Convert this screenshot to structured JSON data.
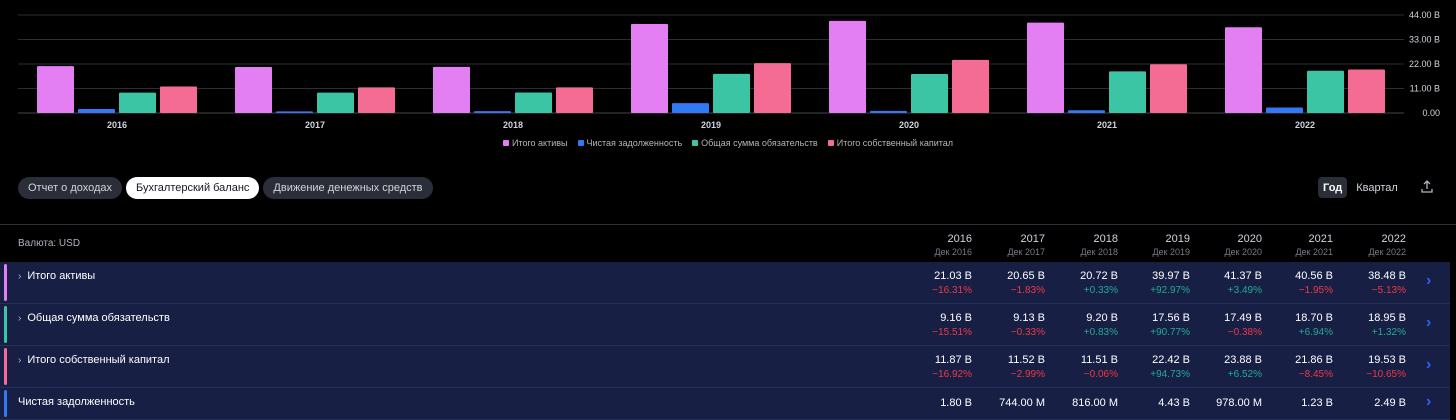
{
  "chart_data": {
    "type": "bar",
    "categories": [
      "2016",
      "2017",
      "2018",
      "2019",
      "2020",
      "2021",
      "2022"
    ],
    "series": [
      {
        "name": "Итого активы",
        "color": "#e37ff3",
        "values": [
          21.03,
          20.65,
          20.72,
          39.97,
          41.37,
          40.56,
          38.48
        ]
      },
      {
        "name": "Чистая задолженность",
        "color": "#3179f5",
        "values": [
          1.8,
          0.744,
          0.816,
          4.43,
          0.978,
          1.23,
          2.49
        ]
      },
      {
        "name": "Общая сумма обязательств",
        "color": "#3bc5a4",
        "values": [
          9.16,
          9.13,
          9.2,
          17.56,
          17.49,
          18.7,
          18.95
        ]
      },
      {
        "name": "Итого собственный капитал",
        "color": "#f46b93",
        "values": [
          11.87,
          11.52,
          11.51,
          22.42,
          23.88,
          21.86,
          19.53
        ]
      }
    ],
    "ylim": [
      0,
      44
    ],
    "yticks": [
      "0.00",
      "11.00 B",
      "22.00 B",
      "33.00 B",
      "44.00 B"
    ],
    "ytick_values": [
      0,
      11,
      22,
      33,
      44
    ],
    "grid": true,
    "legend_position": "bottom"
  },
  "tabs": [
    {
      "label": "Отчет о доходах",
      "active": false
    },
    {
      "label": "Бухгалтерский баланс",
      "active": true
    },
    {
      "label": "Движение денежных средств",
      "active": false
    }
  ],
  "period": {
    "year_label": "Год",
    "quarter_label": "Квартал"
  },
  "table": {
    "currency_label": "Валюта: USD",
    "columns": [
      {
        "year": "2016",
        "sub": "Дек 2016"
      },
      {
        "year": "2017",
        "sub": "Дек 2017"
      },
      {
        "year": "2018",
        "sub": "Дек 2018"
      },
      {
        "year": "2019",
        "sub": "Дек 2019"
      },
      {
        "year": "2020",
        "sub": "Дек 2020"
      },
      {
        "year": "2021",
        "sub": "Дек 2021"
      },
      {
        "year": "2022",
        "sub": "Дек 2022"
      }
    ],
    "rows": [
      {
        "label": "Итого активы",
        "color": "#e37ff3",
        "expandable": true,
        "values": [
          "21.03 B",
          "20.65 B",
          "20.72 B",
          "39.97 B",
          "41.37 B",
          "40.56 B",
          "38.48 B"
        ],
        "changes": [
          "−16.31%",
          "−1.83%",
          "+0.33%",
          "+92.97%",
          "+3.49%",
          "−1.95%",
          "−5.13%"
        ]
      },
      {
        "label": "Общая сумма обязательств",
        "color": "#3bc5a4",
        "expandable": true,
        "values": [
          "9.16 B",
          "9.13 B",
          "9.20 B",
          "17.56 B",
          "17.49 B",
          "18.70 B",
          "18.95 B"
        ],
        "changes": [
          "−15.51%",
          "−0.33%",
          "+0.83%",
          "+90.77%",
          "−0.38%",
          "+6.94%",
          "+1.32%"
        ]
      },
      {
        "label": "Итого собственный капитал",
        "color": "#f46b93",
        "expandable": true,
        "values": [
          "11.87 B",
          "11.52 B",
          "11.51 B",
          "22.42 B",
          "23.88 B",
          "21.86 B",
          "19.53 B"
        ],
        "changes": [
          "−16.92%",
          "−2.99%",
          "−0.06%",
          "+94.73%",
          "+6.52%",
          "−8.45%",
          "−10.65%"
        ]
      },
      {
        "label": "Чистая задолженность",
        "color": "#3179f5",
        "expandable": false,
        "values": [
          "1.80 B",
          "744.00 M",
          "816.00 M",
          "4.43 B",
          "978.00 M",
          "1.23 B",
          "2.49 B"
        ],
        "changes": []
      }
    ]
  }
}
